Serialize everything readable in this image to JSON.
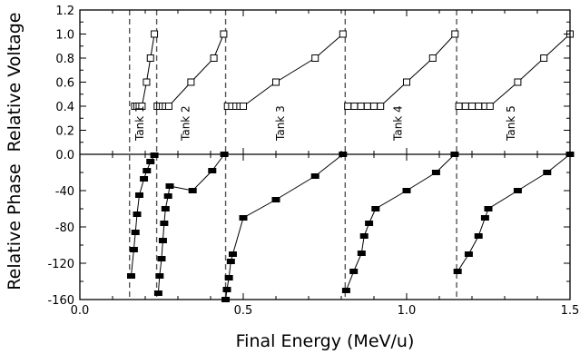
{
  "chart_data": {
    "type": "line",
    "xlabel": "Final Energy (MeV/u)",
    "xlim": [
      0.0,
      1.5
    ],
    "x_ticks": [
      "0.0",
      "0.5",
      "1.0",
      "1.5"
    ],
    "tank_boundaries": [
      0.152,
      0.235,
      0.446,
      0.812,
      1.153
    ],
    "panels": [
      {
        "ylabel": "Relative Voltage",
        "ylim": [
          0.0,
          1.2
        ],
        "y_ticks": [
          "0.0",
          "0.2",
          "0.4",
          "0.6",
          "0.8",
          "1.0",
          "1.2"
        ],
        "marker": "open-square",
        "series": [
          {
            "x": [
              0.168,
              0.175,
              0.182,
              0.19,
              0.204,
              0.216,
              0.228
            ],
            "y": [
              0.4,
              0.4,
              0.4,
              0.4,
              0.6,
              0.8,
              1.0
            ]
          },
          {
            "x": [
              0.237,
              0.245,
              0.253,
              0.262,
              0.272,
              0.34,
              0.41,
              0.44
            ],
            "y": [
              0.4,
              0.4,
              0.4,
              0.4,
              0.4,
              0.6,
              0.8,
              1.0
            ]
          },
          {
            "x": [
              0.452,
              0.465,
              0.478,
              0.49,
              0.5,
              0.6,
              0.72,
              0.805
            ],
            "y": [
              0.4,
              0.4,
              0.4,
              0.4,
              0.4,
              0.6,
              0.8,
              1.0
            ]
          },
          {
            "x": [
              0.82,
              0.84,
              0.86,
              0.88,
              0.9,
              0.92,
              1.0,
              1.08,
              1.148
            ],
            "y": [
              0.4,
              0.4,
              0.4,
              0.4,
              0.4,
              0.4,
              0.6,
              0.8,
              1.0
            ]
          },
          {
            "x": [
              1.16,
              1.18,
              1.2,
              1.22,
              1.24,
              1.255,
              1.34,
              1.42,
              1.5
            ],
            "y": [
              0.4,
              0.4,
              0.4,
              0.4,
              0.4,
              0.4,
              0.6,
              0.8,
              1.0
            ]
          }
        ],
        "annotations": [
          "Tank 1",
          "Tank 2",
          "Tank 3",
          "Tank 4",
          "Tank 5"
        ]
      },
      {
        "ylabel": "Relative Phase",
        "ylim": [
          -160,
          0
        ],
        "y_ticks": [
          "-160",
          "-120",
          "-80",
          "-40",
          "0.0"
        ],
        "marker": "filled-rect",
        "series": [
          {
            "x": [
              0.157,
              0.165,
              0.17,
              0.175,
              0.182,
              0.196,
              0.205,
              0.216,
              0.228
            ],
            "y": [
              -134,
              -105,
              -86,
              -66,
              -45,
              -27,
              -18,
              -8,
              -1
            ]
          },
          {
            "x": [
              0.24,
              0.244,
              0.25,
              0.254,
              0.258,
              0.262,
              0.27,
              0.275,
              0.345,
              0.405,
              0.442
            ],
            "y": [
              -153,
              -134,
              -115,
              -95,
              -76,
              -60,
              -46,
              -35,
              -40,
              -18,
              0
            ]
          },
          {
            "x": [
              0.446,
              0.45,
              0.456,
              0.462,
              0.468,
              0.5,
              0.6,
              0.72,
              0.805
            ],
            "y": [
              -160,
              -149,
              -136,
              -118,
              -110,
              -70,
              -50,
              -24,
              0
            ]
          },
          {
            "x": [
              0.815,
              0.838,
              0.862,
              0.87,
              0.885,
              0.905,
              1.0,
              1.09,
              1.147
            ],
            "y": [
              -150,
              -129,
              -109,
              -90,
              -76,
              -60,
              -40,
              -20,
              0
            ]
          },
          {
            "x": [
              1.156,
              1.19,
              1.22,
              1.24,
              1.25,
              1.34,
              1.43,
              1.5
            ],
            "y": [
              -129,
              -110,
              -90,
              -70,
              -60,
              -40,
              -20,
              0
            ]
          }
        ]
      }
    ]
  }
}
